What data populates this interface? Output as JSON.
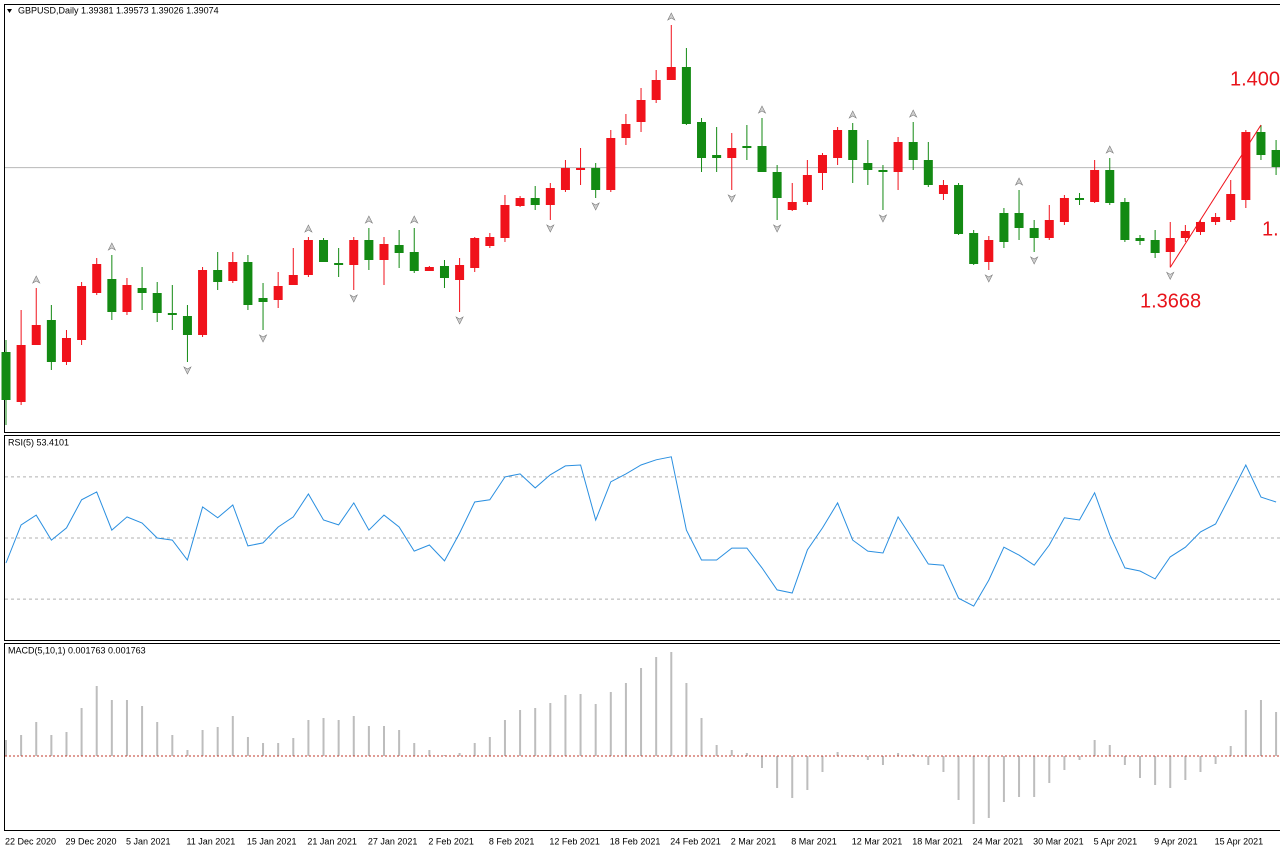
{
  "chart_data": [
    {
      "type": "candlestick",
      "title": "GBPUSD,Daily  1.39381 1.39573 1.39026 1.39074",
      "categories": [
        "22 Dec 2020",
        null,
        null,
        null,
        "29 Dec 2020",
        null,
        null,
        null,
        "5 Jan 2021",
        null,
        null,
        null,
        "11 Jan 2021",
        null,
        null,
        null,
        "15 Jan 2021",
        null,
        null,
        null,
        "21 Jan 2021",
        null,
        null,
        null,
        "27 Jan 2021",
        null,
        null,
        null,
        "2 Feb 2021",
        null,
        null,
        null,
        "8 Feb 2021",
        null,
        null,
        null,
        "12 Feb 2021",
        null,
        null,
        null,
        "18 Feb 2021",
        null,
        null,
        null,
        "24 Feb 2021",
        null,
        null,
        null,
        "2 Mar 2021",
        null,
        null,
        null,
        "8 Mar 2021",
        null,
        null,
        null,
        "12 Mar 2021",
        null,
        null,
        null,
        "18 Mar 2021",
        null,
        null,
        null,
        "24 Mar 2021",
        null,
        null,
        null,
        "30 Mar 2021",
        null,
        null,
        null,
        "5 Apr 2021",
        null,
        null,
        null,
        "9 Apr 2021",
        null,
        null,
        null,
        "15 Apr 2021",
        null,
        null,
        null,
        null
      ],
      "open": [
        1.34648,
        1.33448,
        1.34816,
        1.35416,
        1.34408,
        1.34936,
        1.36064,
        1.364,
        1.35608,
        1.36184,
        1.36064,
        1.35584,
        1.35512,
        1.35056,
        1.36616,
        1.36352,
        1.36808,
        1.35944,
        1.35896,
        1.36256,
        1.36496,
        1.37336,
        1.36784,
        1.36736,
        1.37336,
        1.36856,
        1.37216,
        1.37048,
        1.36592,
        1.36712,
        1.36376,
        1.36664,
        1.37192,
        1.37384,
        1.38152,
        1.38344,
        1.38176,
        1.38536,
        1.39016,
        1.39064,
        1.38536,
        1.39784,
        1.40168,
        1.40696,
        1.41176,
        1.41488,
        1.40168,
        1.39376,
        1.39304,
        1.39592,
        1.39592,
        1.38968,
        1.38056,
        1.38248,
        1.38944,
        1.39304,
        1.39976,
        1.39184,
        1.39016,
        1.38968,
        1.39688,
        1.39256,
        1.3844,
        1.38656,
        1.37504,
        1.36808,
        1.37984,
        1.37984,
        1.37624,
        1.37384,
        1.37768,
        1.38344,
        1.38248,
        1.39016,
        1.38248,
        1.37384,
        1.37336,
        1.37048,
        1.37384,
        1.37528,
        1.37768,
        1.37816,
        1.38296,
        1.39928,
        1.39496
      ],
      "high": [
        1.34936,
        1.35656,
        1.36184,
        1.35776,
        1.35176,
        1.36328,
        1.36904,
        1.36976,
        1.36424,
        1.36688,
        1.36328,
        1.36256,
        1.35776,
        1.36688,
        1.37048,
        1.37048,
        1.36976,
        1.36304,
        1.36568,
        1.37144,
        1.37408,
        1.37384,
        1.37144,
        1.37408,
        1.37624,
        1.37408,
        1.37576,
        1.37624,
        1.36712,
        1.36856,
        1.36904,
        1.37408,
        1.37504,
        1.38416,
        1.38392,
        1.38632,
        1.38704,
        1.39256,
        1.39544,
        1.39184,
        1.39976,
        1.4036,
        1.40984,
        1.41416,
        1.42496,
        1.41944,
        1.40264,
        1.40048,
        1.39904,
        1.40096,
        1.40264,
        1.39136,
        1.38704,
        1.39256,
        1.39424,
        1.40048,
        1.40144,
        1.39736,
        1.39136,
        1.39808,
        1.40168,
        1.39688,
        1.38776,
        1.38704,
        1.37576,
        1.37432,
        1.38104,
        1.38536,
        1.37816,
        1.38176,
        1.38416,
        1.38464,
        1.39256,
        1.39304,
        1.38344,
        1.37456,
        1.37576,
        1.37768,
        1.37696,
        1.37816,
        1.37984,
        1.38776,
        1.39976,
        1.40096,
        1.39736
      ],
      "low": [
        1.32896,
        1.33376,
        1.34816,
        1.34216,
        1.34336,
        1.34816,
        1.36016,
        1.35416,
        1.35536,
        1.35656,
        1.35368,
        1.35176,
        1.34408,
        1.35008,
        1.36136,
        1.36304,
        1.35656,
        1.35176,
        1.35704,
        1.36256,
        1.36448,
        1.36808,
        1.36448,
        1.36136,
        1.36616,
        1.36256,
        1.36664,
        1.36544,
        1.36592,
        1.36184,
        1.35608,
        1.36568,
        1.37144,
        1.37288,
        1.38128,
        1.38056,
        1.37816,
        1.38488,
        1.38656,
        1.38344,
        1.38488,
        1.39616,
        1.39928,
        1.40624,
        1.41176,
        1.40096,
        1.38968,
        1.38968,
        1.38536,
        1.39256,
        1.38968,
        1.37816,
        1.38032,
        1.38176,
        1.38536,
        1.39136,
        1.38704,
        1.38656,
        1.38056,
        1.38536,
        1.39016,
        1.38608,
        1.38296,
        1.37456,
        1.36736,
        1.36616,
        1.37144,
        1.37336,
        1.37048,
        1.37336,
        1.37696,
        1.38176,
        1.38224,
        1.38176,
        1.37288,
        1.37216,
        1.36904,
        1.3668,
        1.37288,
        1.37456,
        1.37696,
        1.37768,
        1.38104,
        1.39256,
        1.38896
      ],
      "close": [
        1.33496,
        1.34816,
        1.35296,
        1.34408,
        1.34984,
        1.36232,
        1.3676,
        1.35608,
        1.36256,
        1.36064,
        1.35584,
        1.35536,
        1.35056,
        1.36616,
        1.36328,
        1.36808,
        1.35776,
        1.35848,
        1.36232,
        1.36496,
        1.37336,
        1.36808,
        1.36736,
        1.37336,
        1.36856,
        1.3724,
        1.37024,
        1.36592,
        1.36688,
        1.36424,
        1.36736,
        1.37384,
        1.37408,
        1.38176,
        1.38344,
        1.38176,
        1.38584,
        1.39064,
        1.39064,
        1.38536,
        1.39784,
        1.4012,
        1.40696,
        1.41176,
        1.41488,
        1.4012,
        1.39304,
        1.39304,
        1.39544,
        1.39544,
        1.38968,
        1.38344,
        1.38248,
        1.38896,
        1.39376,
        1.39976,
        1.39256,
        1.39016,
        1.38968,
        1.39688,
        1.39256,
        1.38656,
        1.38656,
        1.3748,
        1.3676,
        1.37336,
        1.37288,
        1.37624,
        1.37384,
        1.37816,
        1.38344,
        1.38296,
        1.39016,
        1.38224,
        1.37336,
        1.37312,
        1.37024,
        1.37384,
        1.37552,
        1.37768,
        1.37888,
        1.3844,
        1.39928,
        1.39376,
        1.39088
      ],
      "up_color": "#f0121b",
      "down_color": "#138a13",
      "price_line": 1.39074,
      "ylim": [
        1.32728,
        1.43
      ],
      "annotations": [
        "1.400",
        "1.3668",
        "1."
      ]
    },
    {
      "type": "line",
      "title": "RSI(5) 53.4101",
      "color": "#2a8fe0",
      "values": [
        41.8,
        54.3,
        57.5,
        49.3,
        53.3,
        62.5,
        65.1,
        52.6,
        56.9,
        54.9,
        50.0,
        49.3,
        42.8,
        60.2,
        56.6,
        60.8,
        47.4,
        48.4,
        53.6,
        56.9,
        64.4,
        55.9,
        54.3,
        61.5,
        52.6,
        57.5,
        53.6,
        45.7,
        47.7,
        42.5,
        51.6,
        61.8,
        62.5,
        70.0,
        71.0,
        66.4,
        70.7,
        73.6,
        73.9,
        55.9,
        68.4,
        71.0,
        73.9,
        75.6,
        76.6,
        52.6,
        42.8,
        42.8,
        46.7,
        46.7,
        40.2,
        33.0,
        32.0,
        46.1,
        53.3,
        61.5,
        49.3,
        45.7,
        45.1,
        56.9,
        49.3,
        41.5,
        41.1,
        30.3,
        27.7,
        36.2,
        47.0,
        44.4,
        41.1,
        47.7,
        56.6,
        55.9,
        64.8,
        51.0,
        40.2,
        39.2,
        36.6,
        43.8,
        47.0,
        52.0,
        54.6,
        64.1,
        73.9,
        63.4,
        61.8
      ],
      "ylim": [
        16.6,
        83.4
      ],
      "levels": [
        30,
        50,
        70
      ]
    },
    {
      "type": "bar",
      "title": "MACD(5,10,1) 0.001763 0.001763",
      "color": "#bdbdbd",
      "zero_color": "#c0392b",
      "values": [
        0.0016,
        0.0021,
        0.0034,
        0.0021,
        0.0024,
        0.0048,
        0.007,
        0.0056,
        0.0056,
        0.005,
        0.0034,
        0.0021,
        0.0006,
        0.0026,
        0.0029,
        0.004,
        0.0019,
        0.0013,
        0.0013,
        0.0018,
        0.0036,
        0.0038,
        0.0036,
        0.004,
        0.003,
        0.003,
        0.0026,
        0.0013,
        0.0006,
        0.0001,
        0.0003,
        0.0013,
        0.0019,
        0.0036,
        0.0046,
        0.0048,
        0.0053,
        0.0061,
        0.0062,
        0.0052,
        0.0064,
        0.0073,
        0.0088,
        0.0099,
        0.0104,
        0.0073,
        0.0038,
        0.0011,
        0.0006,
        0.0003,
        -0.0012,
        -0.0032,
        -0.0042,
        -0.0034,
        -0.0016,
        0.0004,
        0.0001,
        -0.0004,
        -0.0009,
        0.0003,
        0.0002,
        -0.0009,
        -0.0016,
        -0.0044,
        -0.0068,
        -0.0062,
        -0.0046,
        -0.0041,
        -0.0041,
        -0.0027,
        -0.0014,
        -0.0004,
        0.0016,
        0.0011,
        -0.0009,
        -0.0022,
        -0.0029,
        -0.0032,
        -0.0024,
        -0.0016,
        -0.0008,
        0.001,
        0.0046,
        0.0056,
        0.0044
      ],
      "ylim": [
        -0.0074,
        0.0112
      ]
    }
  ]
}
